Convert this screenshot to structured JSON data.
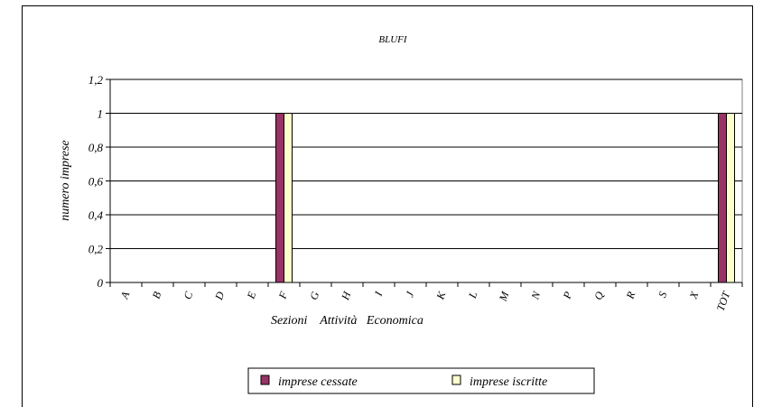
{
  "chart_data": {
    "type": "bar",
    "title": "BLUFI",
    "ylabel": "numero imprese",
    "xlabel": "Sezioni    Attività   Economica",
    "categories": [
      "A",
      "B",
      "C",
      "D",
      "E",
      "F",
      "G",
      "H",
      "I",
      "J",
      "K",
      "L",
      "M",
      "N",
      "P",
      "Q",
      "R",
      "S",
      "X",
      "TOT"
    ],
    "ylim": [
      0,
      1.2
    ],
    "yticks": [
      "0",
      "0,2",
      "0,4",
      "0,6",
      "0,8",
      "1",
      "1,2"
    ],
    "ytick_values": [
      0,
      0.2,
      0.4,
      0.6,
      0.8,
      1.0,
      1.2
    ],
    "grid": true,
    "legend_position": "bottom",
    "series": [
      {
        "name": "imprese cessate",
        "color": "#993366",
        "values": [
          0,
          0,
          0,
          0,
          0,
          1,
          0,
          0,
          0,
          0,
          0,
          0,
          0,
          0,
          0,
          0,
          0,
          0,
          0,
          1
        ]
      },
      {
        "name": "imprese iscritte",
        "color": "#FFFFCC",
        "values": [
          0,
          0,
          0,
          0,
          0,
          1,
          0,
          0,
          0,
          0,
          0,
          0,
          0,
          0,
          0,
          0,
          0,
          0,
          0,
          1
        ]
      }
    ]
  }
}
